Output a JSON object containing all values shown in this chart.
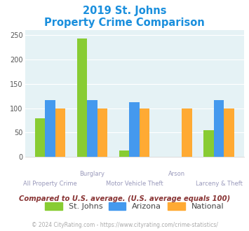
{
  "title_line1": "2019 St. Johns",
  "title_line2": "Property Crime Comparison",
  "title_color": "#1a8fdd",
  "stjohns": [
    80,
    242,
    14,
    0,
    55
  ],
  "arizona": [
    117,
    117,
    113,
    0,
    117
  ],
  "national": [
    100,
    100,
    100,
    100,
    100
  ],
  "bar_color_stjohns": "#88cc33",
  "bar_color_arizona": "#4499ee",
  "bar_color_national": "#ffaa33",
  "bg_color": "#e5f2f5",
  "ylim": [
    0,
    260
  ],
  "yticks": [
    0,
    50,
    100,
    150,
    200,
    250
  ],
  "legend_labels": [
    "St. Johns",
    "Arizona",
    "National"
  ],
  "note_text": "Compared to U.S. average. (U.S. average equals 100)",
  "note_color": "#883333",
  "footer_text": "© 2024 CityRating.com - https://www.cityrating.com/crime-statistics/",
  "footer_color": "#aaaaaa",
  "xlabel_top": [
    "",
    "Burglary",
    "",
    "Arson",
    ""
  ],
  "xlabel_bottom": [
    "All Property Crime",
    "",
    "Motor Vehicle Theft",
    "",
    "Larceny & Theft"
  ]
}
